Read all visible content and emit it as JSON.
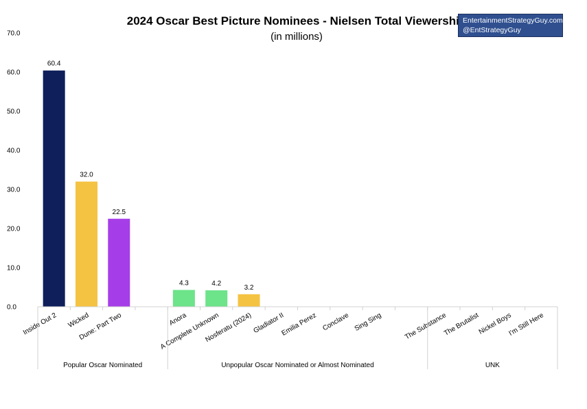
{
  "chart_data": {
    "type": "bar",
    "title": "2024 Oscar Best Picture Nominees - Nielsen Total Viewership",
    "subtitle": "(in millions)",
    "ylim": [
      0,
      70
    ],
    "yticks": [
      "0.0",
      "10.0",
      "20.0",
      "30.0",
      "40.0",
      "50.0",
      "60.0",
      "70.0"
    ],
    "grid": false,
    "categories": [
      "Inside Out 2",
      "Wicked",
      "Dune: Part Two",
      "",
      "Anora",
      "A Complete Unknown",
      "Nosferatu (2024)",
      "Gladiator II",
      "Emilia Perez",
      "Conclave",
      "Sing Sing",
      "",
      "The Substance",
      "The Brutalist",
      "Nickel Boys",
      "I'm Still Here"
    ],
    "values": [
      60.4,
      32.0,
      22.5,
      null,
      4.3,
      4.2,
      3.2,
      null,
      null,
      null,
      null,
      null,
      null,
      null,
      null,
      null
    ],
    "value_labels": [
      "60.4",
      "32.0",
      "22.5",
      "",
      "4.3",
      "4.2",
      "3.2",
      "",
      "",
      "",
      "",
      "",
      "",
      "",
      "",
      ""
    ],
    "colors": [
      "#0e1f5b",
      "#f5c342",
      "#a53ee8",
      "",
      "#6de38a",
      "#6de38a",
      "#f5c342",
      "",
      "",
      "",
      "",
      "",
      "",
      "",
      "",
      ""
    ],
    "groups": [
      {
        "label": "Popular Oscar Nominated",
        "start": 0,
        "end": 3
      },
      {
        "label": "Unpopular Oscar Nominated or Almost Nominated",
        "start": 4,
        "end": 11
      },
      {
        "label": "UNK",
        "start": 12,
        "end": 15
      }
    ]
  },
  "credit": {
    "line1": "EntertainmentStrategyGuy.com",
    "line2": "@EntStrategyGuy"
  }
}
